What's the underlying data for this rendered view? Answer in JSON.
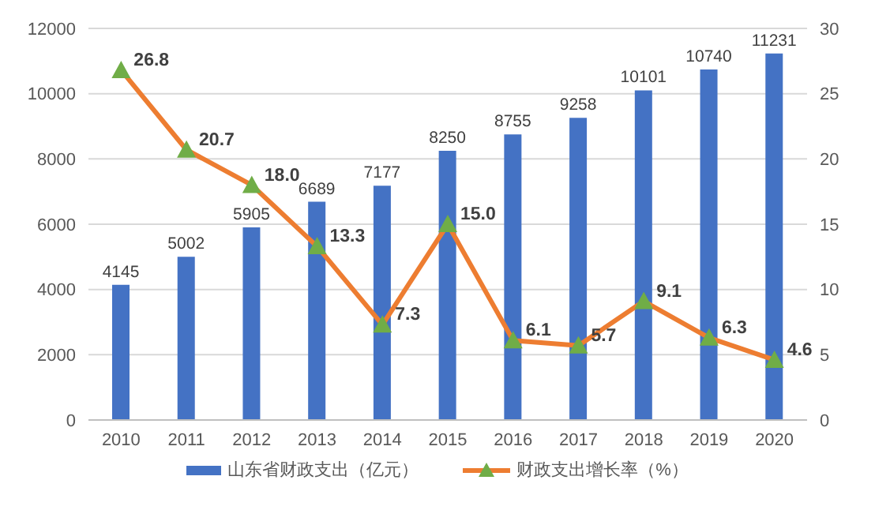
{
  "chart_data": {
    "type": "bar",
    "categories": [
      "2010",
      "2011",
      "2012",
      "2013",
      "2014",
      "2015",
      "2016",
      "2017",
      "2018",
      "2019",
      "2020"
    ],
    "series": [
      {
        "name": "山东省财政支出（亿元）",
        "color": "#4472c4",
        "values": [
          4145,
          5002,
          5905,
          6689,
          7177,
          8250,
          8755,
          9258,
          10101,
          10740,
          11231
        ]
      },
      {
        "name": "财政支出增长率（%）",
        "type": "line",
        "axis": "y2",
        "color": "#ed7d31",
        "values": [
          26.8,
          20.7,
          18.0,
          13.3,
          7.3,
          15.0,
          6.1,
          5.7,
          9.1,
          6.3,
          4.6
        ],
        "value_labels": [
          "26.8",
          "20.7",
          "18.0",
          "13.3",
          "7.3",
          "15.0",
          "6.1",
          "5.7",
          "9.1",
          "6.3",
          "4.6"
        ]
      }
    ],
    "ylim": [
      0,
      12000
    ],
    "yticks": [
      0,
      2000,
      4000,
      6000,
      8000,
      10000,
      12000
    ],
    "y2lim": [
      0,
      30
    ],
    "y2ticks": [
      0,
      5,
      10,
      15,
      20,
      25,
      30
    ],
    "grid": "y",
    "legend": "bottom",
    "data_labels": true,
    "marker": "triangle",
    "line_style": "solid"
  }
}
